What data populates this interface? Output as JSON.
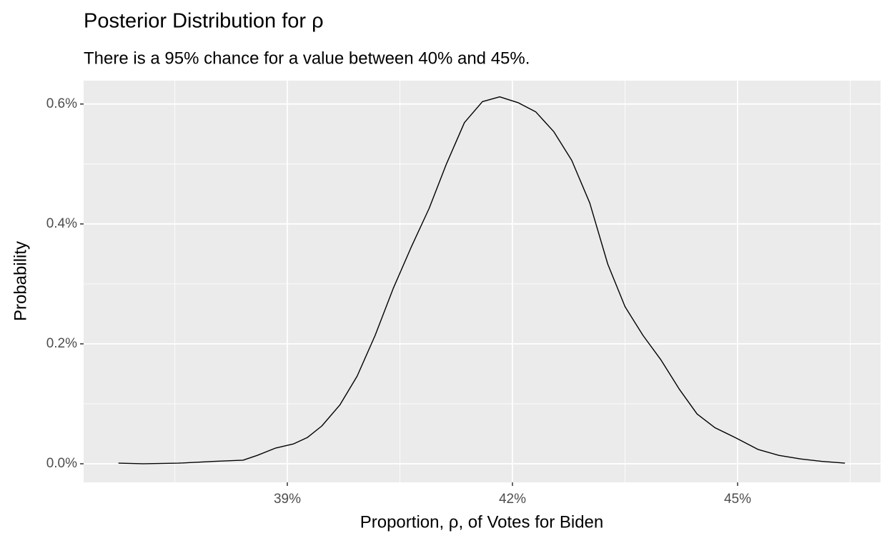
{
  "chart_data": {
    "type": "line",
    "title": "Posterior Distribution for  ρ",
    "subtitle": "There is a 95% chance for a value between 40% and 45%.",
    "x_label": "Proportion, ρ, of Votes for Biden",
    "y_label": "Probability",
    "xlim": [
      36.286,
      46.905
    ],
    "ylim": [
      -0.031,
      0.639
    ],
    "xticks": [
      {
        "value": 39,
        "label": "39%"
      },
      {
        "value": 42,
        "label": "42%"
      },
      {
        "value": 45,
        "label": "45%"
      }
    ],
    "yticks": [
      {
        "value": 0,
        "label": "0.0%"
      },
      {
        "value": 0.2,
        "label": "0.2%"
      },
      {
        "value": 0.4,
        "label": "0.4%"
      },
      {
        "value": 0.6,
        "label": "0.6%"
      }
    ],
    "grid": true,
    "series": [
      {
        "color": "#000000",
        "x": [
          36.75,
          37.08,
          37.55,
          38.03,
          38.41,
          38.6,
          38.84,
          39.08,
          39.27,
          39.46,
          39.7,
          39.93,
          40.17,
          40.41,
          40.65,
          40.89,
          41.12,
          41.36,
          41.6,
          41.83,
          42.08,
          42.31,
          42.55,
          42.79,
          43.03,
          43.27,
          43.5,
          43.74,
          43.98,
          44.22,
          44.46,
          44.7,
          44.98,
          45.27,
          45.55,
          45.84,
          46.12,
          46.43
        ],
        "values": [
          0.001,
          0.0,
          0.001,
          0.004,
          0.006,
          0.014,
          0.026,
          0.033,
          0.044,
          0.063,
          0.098,
          0.146,
          0.214,
          0.292,
          0.361,
          0.426,
          0.5,
          0.569,
          0.604,
          0.612,
          0.602,
          0.587,
          0.554,
          0.506,
          0.435,
          0.333,
          0.262,
          0.214,
          0.173,
          0.125,
          0.083,
          0.06,
          0.043,
          0.024,
          0.014,
          0.008,
          0.004,
          0.001
        ]
      }
    ]
  }
}
